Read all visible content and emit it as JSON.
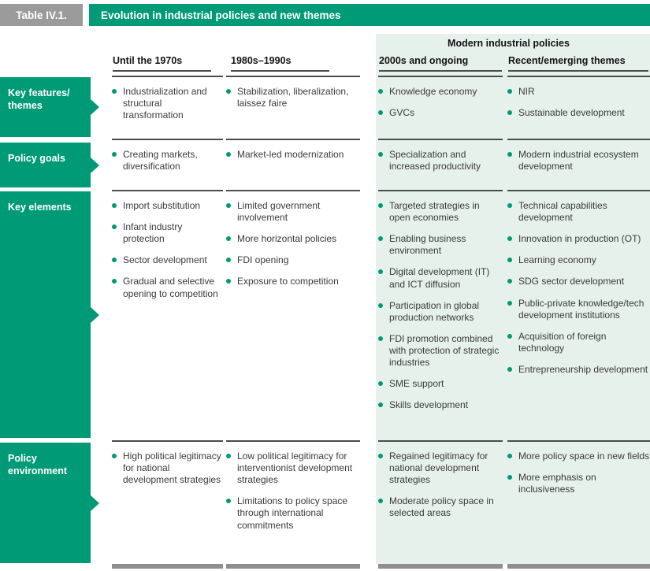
{
  "table": {
    "id_label": "Table IV.1.",
    "title": "Evolution in industrial policies and new themes",
    "group_header": "Modern industrial policies",
    "columns": [
      "Until the 1970s",
      "1980s–1990s",
      "2000s and ongoing",
      "Recent/emerging themes"
    ],
    "rows": [
      {
        "label": "Key features/\nthemes",
        "cells": [
          [
            "Industrialization and structural transformation"
          ],
          [
            "Stabilization, liberalization, laissez faire"
          ],
          [
            "Knowledge economy",
            "GVCs"
          ],
          [
            "NIR",
            "Sustainable development"
          ]
        ]
      },
      {
        "label": "Policy goals",
        "cells": [
          [
            "Creating markets, diversification"
          ],
          [
            "Market-led modernization"
          ],
          [
            "Specialization and increased productivity"
          ],
          [
            "Modern industrial ecosystem development"
          ]
        ]
      },
      {
        "label": "Key elements",
        "cells": [
          [
            "Import substitution",
            "Infant industry protection",
            "Sector development",
            "Gradual and selective opening to competition"
          ],
          [
            "Limited government involvement",
            "More horizontal policies",
            "FDI opening",
            "Exposure to competition"
          ],
          [
            "Targeted strategies in open economies",
            "Enabling business environment",
            "Digital development (IT) and ICT diffusion",
            "Participation in global production networks",
            "FDI promotion combined with protection of strategic industries",
            "SME support",
            "Skills development"
          ],
          [
            "Technical capabilities development",
            "Innovation in production (OT)",
            "Learning economy",
            "SDG sector development",
            "Public-private knowledge/tech development institutions",
            "Acquisition of foreign technology",
            "Entrepreneurship development"
          ]
        ]
      },
      {
        "label": "Policy\nenvironment",
        "cells": [
          [
            "High political legitimacy for national development strategies"
          ],
          [
            "Low political legitimacy for interventionist development strategies",
            "Limitations to policy space through international commitments"
          ],
          [
            "Regained legitimacy for national development strategies",
            "Moderate policy space in selected areas"
          ],
          [
            "More policy space in new fields",
            "More emphasis on inclusiveness"
          ]
        ]
      }
    ],
    "colors": {
      "teal": "#009a76",
      "shade": "#e7f1ec",
      "badge_gray": "#9b9b9b",
      "rule": "#4c4c4c",
      "bottom_bar": "#8f8f8f",
      "text": "#3a3a3a"
    }
  }
}
